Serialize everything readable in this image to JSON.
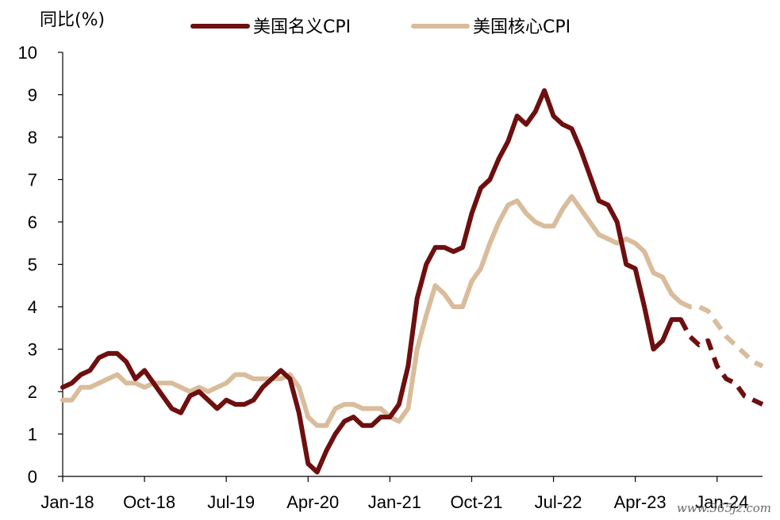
{
  "chart_data": {
    "type": "line",
    "unit_label": "同比(%)",
    "ylim": [
      0,
      10
    ],
    "y_ticks": [
      "0",
      "1",
      "2",
      "3",
      "4",
      "5",
      "6",
      "7",
      "8",
      "9",
      "10"
    ],
    "x_tick_labels": [
      "Jan-18",
      "Oct-18",
      "Jul-19",
      "Apr-20",
      "Jan-21",
      "Oct-21",
      "Jul-22",
      "Apr-23",
      "Jan-24"
    ],
    "x_start": "2018-01",
    "x_end": "2024-06",
    "grid": false,
    "legend_position": "top",
    "series": [
      {
        "name": "美国名义CPI",
        "color": "#6e0f0f",
        "actual": [
          [
            "2018-01",
            2.1
          ],
          [
            "2018-02",
            2.2
          ],
          [
            "2018-03",
            2.4
          ],
          [
            "2018-04",
            2.5
          ],
          [
            "2018-05",
            2.8
          ],
          [
            "2018-06",
            2.9
          ],
          [
            "2018-07",
            2.9
          ],
          [
            "2018-08",
            2.7
          ],
          [
            "2018-09",
            2.3
          ],
          [
            "2018-10",
            2.5
          ],
          [
            "2018-11",
            2.2
          ],
          [
            "2018-12",
            1.9
          ],
          [
            "2019-01",
            1.6
          ],
          [
            "2019-02",
            1.5
          ],
          [
            "2019-03",
            1.9
          ],
          [
            "2019-04",
            2.0
          ],
          [
            "2019-05",
            1.8
          ],
          [
            "2019-06",
            1.6
          ],
          [
            "2019-07",
            1.8
          ],
          [
            "2019-08",
            1.7
          ],
          [
            "2019-09",
            1.7
          ],
          [
            "2019-10",
            1.8
          ],
          [
            "2019-11",
            2.1
          ],
          [
            "2019-12",
            2.3
          ],
          [
            "2020-01",
            2.5
          ],
          [
            "2020-02",
            2.3
          ],
          [
            "2020-03",
            1.5
          ],
          [
            "2020-04",
            0.3
          ],
          [
            "2020-05",
            0.1
          ],
          [
            "2020-06",
            0.6
          ],
          [
            "2020-07",
            1.0
          ],
          [
            "2020-08",
            1.3
          ],
          [
            "2020-09",
            1.4
          ],
          [
            "2020-10",
            1.2
          ],
          [
            "2020-11",
            1.2
          ],
          [
            "2020-12",
            1.4
          ],
          [
            "2021-01",
            1.4
          ],
          [
            "2021-02",
            1.7
          ],
          [
            "2021-03",
            2.6
          ],
          [
            "2021-04",
            4.2
          ],
          [
            "2021-05",
            5.0
          ],
          [
            "2021-06",
            5.4
          ],
          [
            "2021-07",
            5.4
          ],
          [
            "2021-08",
            5.3
          ],
          [
            "2021-09",
            5.4
          ],
          [
            "2021-10",
            6.2
          ],
          [
            "2021-11",
            6.8
          ],
          [
            "2021-12",
            7.0
          ],
          [
            "2022-01",
            7.5
          ],
          [
            "2022-02",
            7.9
          ],
          [
            "2022-03",
            8.5
          ],
          [
            "2022-04",
            8.3
          ],
          [
            "2022-05",
            8.6
          ],
          [
            "2022-06",
            9.1
          ],
          [
            "2022-07",
            8.5
          ],
          [
            "2022-08",
            8.3
          ],
          [
            "2022-09",
            8.2
          ],
          [
            "2022-10",
            7.7
          ],
          [
            "2022-11",
            7.1
          ],
          [
            "2022-12",
            6.5
          ],
          [
            "2023-01",
            6.4
          ],
          [
            "2023-02",
            6.0
          ],
          [
            "2023-03",
            5.0
          ],
          [
            "2023-04",
            4.9
          ],
          [
            "2023-05",
            4.0
          ],
          [
            "2023-06",
            3.0
          ],
          [
            "2023-07",
            3.2
          ],
          [
            "2023-08",
            3.7
          ],
          [
            "2023-09",
            3.7
          ]
        ],
        "forecast": [
          [
            "2023-09",
            3.7
          ],
          [
            "2023-10",
            3.3
          ],
          [
            "2023-11",
            3.1
          ],
          [
            "2023-12",
            3.2
          ],
          [
            "2024-01",
            2.6
          ],
          [
            "2024-02",
            2.3
          ],
          [
            "2024-03",
            2.2
          ],
          [
            "2024-04",
            1.9
          ],
          [
            "2024-05",
            1.8
          ],
          [
            "2024-06",
            1.7
          ]
        ]
      },
      {
        "name": "美国核心CPI",
        "color": "#d9bc9b",
        "actual": [
          [
            "2018-01",
            1.8
          ],
          [
            "2018-02",
            1.8
          ],
          [
            "2018-03",
            2.1
          ],
          [
            "2018-04",
            2.1
          ],
          [
            "2018-05",
            2.2
          ],
          [
            "2018-06",
            2.3
          ],
          [
            "2018-07",
            2.4
          ],
          [
            "2018-08",
            2.2
          ],
          [
            "2018-09",
            2.2
          ],
          [
            "2018-10",
            2.1
          ],
          [
            "2018-11",
            2.2
          ],
          [
            "2018-12",
            2.2
          ],
          [
            "2019-01",
            2.2
          ],
          [
            "2019-02",
            2.1
          ],
          [
            "2019-03",
            2.0
          ],
          [
            "2019-04",
            2.1
          ],
          [
            "2019-05",
            2.0
          ],
          [
            "2019-06",
            2.1
          ],
          [
            "2019-07",
            2.2
          ],
          [
            "2019-08",
            2.4
          ],
          [
            "2019-09",
            2.4
          ],
          [
            "2019-10",
            2.3
          ],
          [
            "2019-11",
            2.3
          ],
          [
            "2019-12",
            2.3
          ],
          [
            "2020-01",
            2.3
          ],
          [
            "2020-02",
            2.4
          ],
          [
            "2020-03",
            2.1
          ],
          [
            "2020-04",
            1.4
          ],
          [
            "2020-05",
            1.2
          ],
          [
            "2020-06",
            1.2
          ],
          [
            "2020-07",
            1.6
          ],
          [
            "2020-08",
            1.7
          ],
          [
            "2020-09",
            1.7
          ],
          [
            "2020-10",
            1.6
          ],
          [
            "2020-11",
            1.6
          ],
          [
            "2020-12",
            1.6
          ],
          [
            "2021-01",
            1.4
          ],
          [
            "2021-02",
            1.3
          ],
          [
            "2021-03",
            1.6
          ],
          [
            "2021-04",
            3.0
          ],
          [
            "2021-05",
            3.8
          ],
          [
            "2021-06",
            4.5
          ],
          [
            "2021-07",
            4.3
          ],
          [
            "2021-08",
            4.0
          ],
          [
            "2021-09",
            4.0
          ],
          [
            "2021-10",
            4.6
          ],
          [
            "2021-11",
            4.9
          ],
          [
            "2021-12",
            5.5
          ],
          [
            "2022-01",
            6.0
          ],
          [
            "2022-02",
            6.4
          ],
          [
            "2022-03",
            6.5
          ],
          [
            "2022-04",
            6.2
          ],
          [
            "2022-05",
            6.0
          ],
          [
            "2022-06",
            5.9
          ],
          [
            "2022-07",
            5.9
          ],
          [
            "2022-08",
            6.3
          ],
          [
            "2022-09",
            6.6
          ],
          [
            "2022-10",
            6.3
          ],
          [
            "2022-11",
            6.0
          ],
          [
            "2022-12",
            5.7
          ],
          [
            "2023-01",
            5.6
          ],
          [
            "2023-02",
            5.5
          ],
          [
            "2023-03",
            5.6
          ],
          [
            "2023-04",
            5.5
          ],
          [
            "2023-05",
            5.3
          ],
          [
            "2023-06",
            4.8
          ],
          [
            "2023-07",
            4.7
          ],
          [
            "2023-08",
            4.3
          ],
          [
            "2023-09",
            4.1
          ]
        ],
        "forecast": [
          [
            "2023-09",
            4.1
          ],
          [
            "2023-10",
            4.0
          ],
          [
            "2023-11",
            4.0
          ],
          [
            "2023-12",
            3.9
          ],
          [
            "2024-01",
            3.6
          ],
          [
            "2024-02",
            3.3
          ],
          [
            "2024-03",
            3.1
          ],
          [
            "2024-04",
            2.9
          ],
          [
            "2024-05",
            2.7
          ],
          [
            "2024-06",
            2.6
          ]
        ]
      }
    ]
  },
  "watermark": "www.365jz.com"
}
